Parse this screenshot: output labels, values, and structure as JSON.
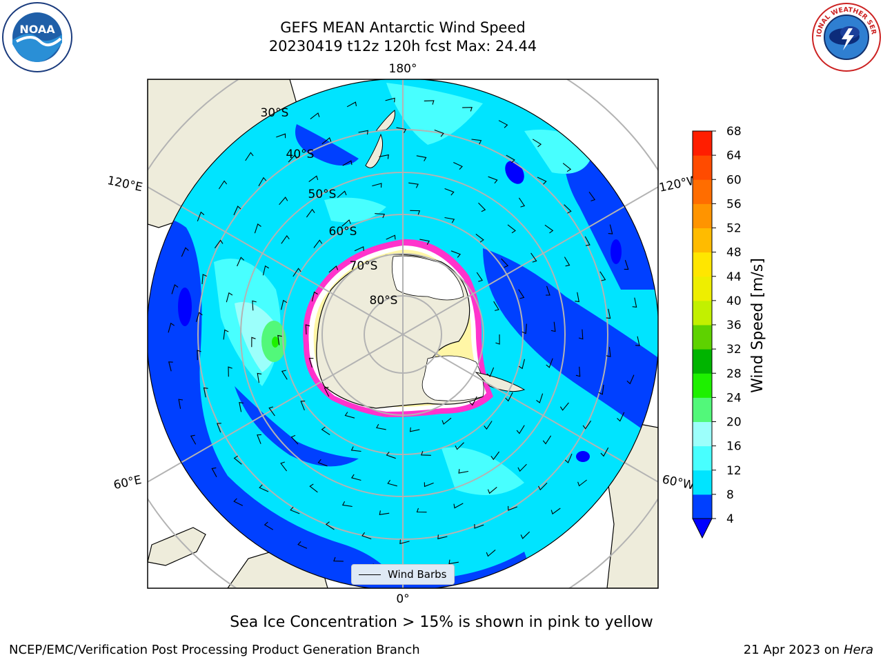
{
  "title": {
    "line1": "GEFS MEAN Antarctic Wind Speed",
    "line2": "20230419 t12z 120h fcst   Max: 24.44"
  },
  "logos": {
    "left": "noaa-logo",
    "right": "national-weather-service-logo",
    "left_text": "NOAA",
    "right_text": "NATIONAL WEATHER SERVICE"
  },
  "map": {
    "projection": "south-polar-stereographic",
    "longitude_labels": {
      "top": "180°",
      "bottom": "0°",
      "upper_left": "120°E",
      "upper_right": "120°W",
      "lower_left": "60°E",
      "lower_right": "60°W"
    },
    "latitude_labels": [
      "30°S",
      "40°S",
      "50°S",
      "60°S",
      "70°S",
      "80°S"
    ],
    "legend_label": "Wind Barbs",
    "colors": {
      "land": "#eeecdb",
      "ice_edge": "#ff33cc",
      "ice_inner": "#ffffff"
    }
  },
  "colorbar": {
    "label": "Wind Speed [m/s]",
    "ticks": [
      "4",
      "8",
      "12",
      "16",
      "20",
      "24",
      "28",
      "32",
      "36",
      "40",
      "44",
      "48",
      "52",
      "56",
      "60",
      "64",
      "68"
    ],
    "colors": [
      "#0040ff",
      "#00e4ff",
      "#48ffff",
      "#9cfffb",
      "#52f87a",
      "#1ef000",
      "#00b400",
      "#5ed200",
      "#c2f000",
      "#eeee00",
      "#ffe600",
      "#ffbb00",
      "#ff9400",
      "#ff6d00",
      "#ff4b00",
      "#ff1e00"
    ],
    "under_color": "#0000ff"
  },
  "caption": "Sea Ice Concentration > 15% is shown in pink to yellow",
  "footer": {
    "left": "NCEP/EMC/Verification Post Processing Product Generation Branch",
    "date": "21 Apr 2023 on",
    "machine": "Hera"
  }
}
